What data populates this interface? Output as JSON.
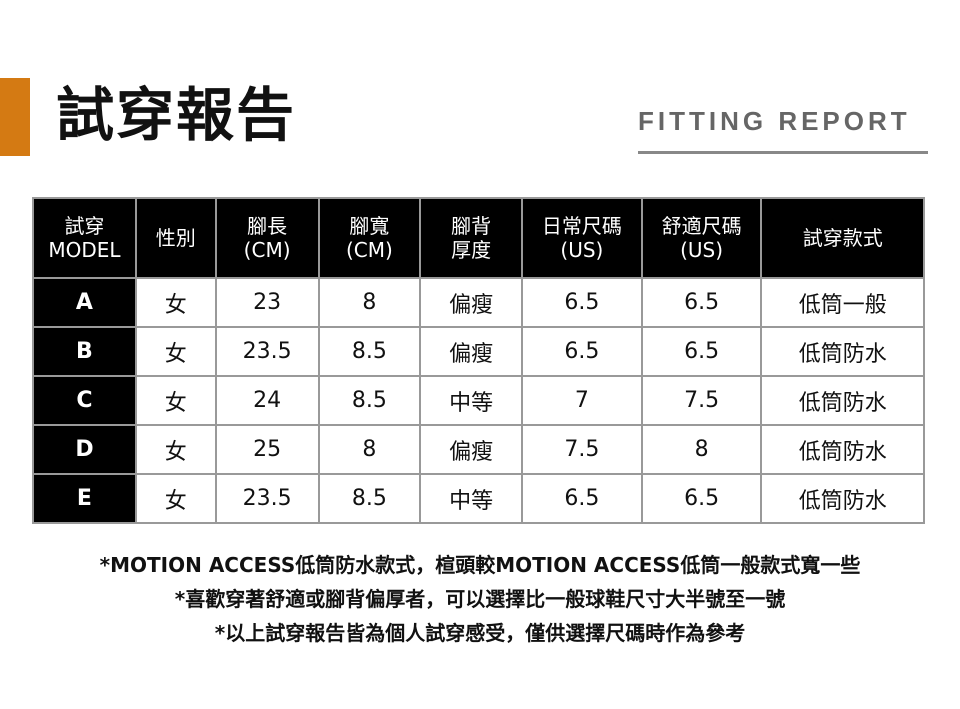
{
  "title": "試穿報告",
  "subtitle": "FITTING REPORT",
  "accent": "#d47a13",
  "table": {
    "headers": [
      [
        "試穿",
        "MODEL"
      ],
      [
        "性別",
        ""
      ],
      [
        "腳長",
        "(CM)"
      ],
      [
        "腳寬",
        "(CM)"
      ],
      [
        "腳背",
        "厚度"
      ],
      [
        "日常尺碼",
        "(US)"
      ],
      [
        "舒適尺碼",
        "(US)"
      ],
      [
        "試穿款式",
        ""
      ]
    ],
    "rows": [
      [
        "A",
        "女",
        "23",
        "8",
        "偏瘦",
        "6.5",
        "6.5",
        "低筒一般"
      ],
      [
        "B",
        "女",
        "23.5",
        "8.5",
        "偏瘦",
        "6.5",
        "6.5",
        "低筒防水"
      ],
      [
        "C",
        "女",
        "24",
        "8.5",
        "中等",
        "7",
        "7.5",
        "低筒防水"
      ],
      [
        "D",
        "女",
        "25",
        "8",
        "偏瘦",
        "7.5",
        "8",
        "低筒防水"
      ],
      [
        "E",
        "女",
        "23.5",
        "8.5",
        "中等",
        "6.5",
        "6.5",
        "低筒防水"
      ]
    ]
  },
  "notes": [
    "*MOTION ACCESS低筒防水款式，楦頭較MOTION ACCESS低筒一般款式寬一些",
    "*喜歡穿著舒適或腳背偏厚者，可以選擇比一般球鞋尺寸大半號至一號",
    "*以上試穿報告皆為個人試穿感受，僅供選擇尺碼時作為參考"
  ]
}
